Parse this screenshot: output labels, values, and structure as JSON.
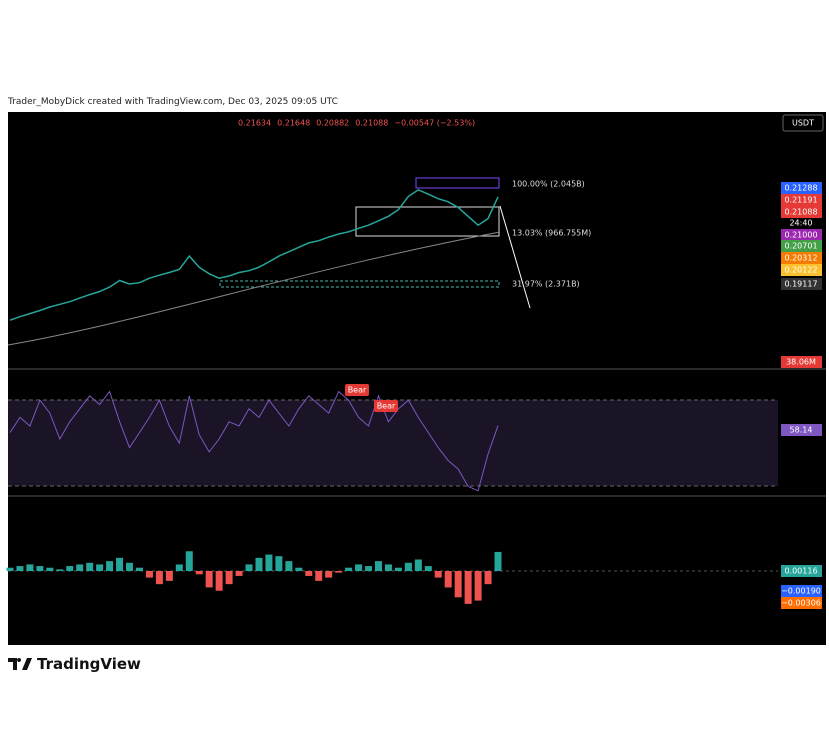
{
  "header": {
    "attribution": "Trader_MobyDick created with TradingView.com, Dec 03, 2025 09:05 UTC"
  },
  "ohlc": [
    "0.21634",
    "0.21648",
    "0.20882",
    "0.21088",
    "−0.00547 (−2.53%)"
  ],
  "currency": "USDT",
  "price_labels": [
    {
      "text": "0.21288",
      "color": "#2962ff"
    },
    {
      "text": "0.21191",
      "color": "#e53935"
    },
    {
      "text": "0.21088",
      "color": "#e53935"
    },
    {
      "text": "0.21000",
      "color": "#9c27b0"
    },
    {
      "text": "0.20701",
      "color": "#43a047"
    },
    {
      "text": "0.20312",
      "color": "#f57c00"
    },
    {
      "text": "0.20122",
      "color": "#fbc02d"
    },
    {
      "text": "0.19117",
      "color": "#333333"
    }
  ],
  "countdown": "24:40",
  "fib_labels": [
    "100.00% (2.045B)",
    "13.03% (966.755M)",
    "31.97% (2.371B)"
  ],
  "volume_label": "38.06M",
  "price": {
    "ylim": [
      0.1722,
      0.2301
    ],
    "color": "#26a69a",
    "values": [
      0.183,
      0.1838,
      0.1845,
      0.1852,
      0.186,
      0.1866,
      0.1872,
      0.188,
      0.1888,
      0.1895,
      0.1905,
      0.192,
      0.1912,
      0.1915,
      0.1925,
      0.1932,
      0.1938,
      0.1945,
      0.1975,
      0.195,
      0.1935,
      0.1925,
      0.193,
      0.1938,
      0.1942,
      0.195,
      0.1962,
      0.1975,
      0.1985,
      0.1995,
      0.2005,
      0.201,
      0.2018,
      0.2025,
      0.203,
      0.2038,
      0.2045,
      0.2055,
      0.2065,
      0.208,
      0.211,
      0.2125,
      0.2115,
      0.2105,
      0.2098,
      0.2085,
      0.2065,
      0.2045,
      0.206,
      0.2109
    ]
  },
  "rsi": {
    "value_label": "58.14",
    "signals": [
      "Bear",
      "Bear"
    ],
    "ylim": [
      26,
      84
    ],
    "color": "#7e57c2",
    "values": [
      55,
      62,
      58,
      70,
      64,
      52,
      60,
      66,
      72,
      68,
      74,
      60,
      48,
      55,
      62,
      70,
      58,
      50,
      72,
      54,
      46,
      52,
      60,
      58,
      66,
      62,
      70,
      64,
      58,
      66,
      72,
      68,
      64,
      74,
      70,
      62,
      58,
      72,
      60,
      66,
      70,
      62,
      55,
      48,
      42,
      38,
      30,
      28,
      45,
      58.14
    ]
  },
  "macd": {
    "labels": [
      "0.00116",
      "−0.00190",
      "−0.00306"
    ],
    "ylim": [
      -0.0045,
      0.0045
    ],
    "values": [
      0.0002,
      0.0003,
      0.0004,
      0.0003,
      0.0002,
      0.0001,
      0.0003,
      0.0004,
      0.0005,
      0.0004,
      0.0006,
      0.0008,
      0.0005,
      0.0002,
      -0.0004,
      -0.0008,
      -0.0006,
      0.0004,
      0.0012,
      -0.0002,
      -0.001,
      -0.0012,
      -0.0008,
      -0.0003,
      0.0004,
      0.0008,
      0.001,
      0.0009,
      0.0006,
      0.0002,
      -0.0003,
      -0.0006,
      -0.0004,
      -0.0001,
      0.0002,
      0.0004,
      0.0003,
      0.0006,
      0.0004,
      0.0002,
      0.0005,
      0.0007,
      0.0003,
      -0.0004,
      -0.001,
      -0.0016,
      -0.002,
      -0.0018,
      -0.0008,
      0.00116
    ]
  },
  "logo": "TradingView"
}
